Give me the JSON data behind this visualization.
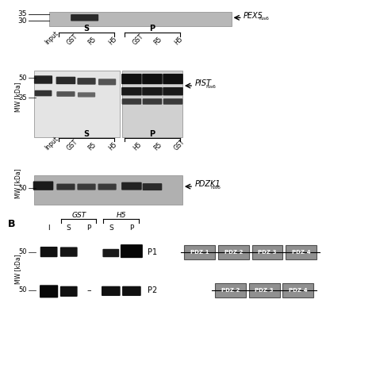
{
  "bg_color": "#ffffff",
  "fig_width": 4.74,
  "fig_height": 4.74,
  "panel_A_top": {
    "mw_labels": [
      "35",
      "30"
    ],
    "blot_label": "PEX5",
    "blot_sub": "his6"
  },
  "panel_A_mid": {
    "mw_labels": [
      "50",
      "35"
    ],
    "label_s": "S",
    "label_p": "P",
    "cols": [
      "Input",
      "GST",
      "R5",
      "H5",
      "GST",
      "R5",
      "H5"
    ],
    "blot_label": "PIST",
    "blot_sub": "his6"
  },
  "panel_A_bot": {
    "mw_labels": [
      "50"
    ],
    "label_s": "S",
    "label_p": "P",
    "cols": [
      "Input",
      "GST",
      "R5",
      "H5",
      "H5",
      "R5",
      "GST"
    ],
    "blot_label": "PDZK1",
    "blot_sub": "his6"
  },
  "panel_B": {
    "label_gst": "GST",
    "label_h5": "H5",
    "cols": [
      "I",
      "S",
      "P",
      "S",
      "P"
    ],
    "p1_label": "P1",
    "p2_label": "P2",
    "pdz_boxes_p1": [
      "PDZ 1",
      "PDZ 2",
      "PDZ 3",
      "PDZ 4"
    ],
    "pdz_boxes_p2": [
      "PDZ 2",
      "PDZ 3",
      "PDZ 4"
    ],
    "box_color": "#909090",
    "box_edge_color": "#505050"
  },
  "section_b_label": "B",
  "gray_colors": {
    "light": "#d0d0d0",
    "medium": "#909090",
    "dark": "#404040",
    "band_dark": "#1a1a1a",
    "band_light": "#555555",
    "blot_bg": "#c8c8c8"
  }
}
